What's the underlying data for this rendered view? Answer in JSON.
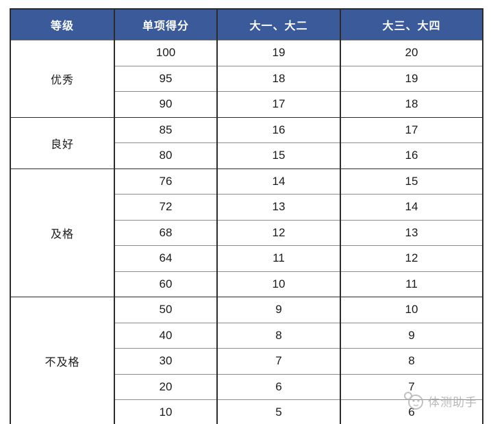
{
  "colors": {
    "header_bg": "#3A5A9A",
    "header_text": "#FFFFFF",
    "body_text": "#1A1A1A",
    "grid_dark": "#2B2B2B",
    "grid_light": "#8C8C8C",
    "watermark": "#A0A0A0"
  },
  "table": {
    "headers": [
      "等级",
      "单项得分",
      "大一、大二",
      "大三、大四"
    ],
    "groups": [
      {
        "grade": "优秀",
        "rows": [
          [
            100,
            19,
            20
          ],
          [
            95,
            18,
            19
          ],
          [
            90,
            17,
            18
          ]
        ]
      },
      {
        "grade": "良好",
        "rows": [
          [
            85,
            16,
            17
          ],
          [
            80,
            15,
            16
          ]
        ]
      },
      {
        "grade": "及格",
        "rows": [
          [
            76,
            14,
            15
          ],
          [
            72,
            13,
            14
          ],
          [
            68,
            12,
            13
          ],
          [
            64,
            11,
            12
          ],
          [
            60,
            10,
            11
          ]
        ]
      },
      {
        "grade": "不及格",
        "rows": [
          [
            50,
            9,
            10
          ],
          [
            40,
            8,
            9
          ],
          [
            30,
            7,
            8
          ],
          [
            20,
            6,
            7
          ],
          [
            10,
            5,
            6
          ]
        ]
      }
    ]
  },
  "watermark": {
    "text": "体测助手"
  },
  "chart_data": {
    "type": "table",
    "title": "",
    "columns": [
      "等级",
      "单项得分",
      "大一、大二",
      "大三、大四"
    ],
    "rows": [
      [
        "优秀",
        100,
        19,
        20
      ],
      [
        "优秀",
        95,
        18,
        19
      ],
      [
        "优秀",
        90,
        17,
        18
      ],
      [
        "良好",
        85,
        16,
        17
      ],
      [
        "良好",
        80,
        15,
        16
      ],
      [
        "及格",
        76,
        14,
        15
      ],
      [
        "及格",
        72,
        13,
        14
      ],
      [
        "及格",
        68,
        12,
        13
      ],
      [
        "及格",
        64,
        11,
        12
      ],
      [
        "及格",
        60,
        10,
        11
      ],
      [
        "不及格",
        50,
        9,
        10
      ],
      [
        "不及格",
        40,
        8,
        9
      ],
      [
        "不及格",
        30,
        7,
        8
      ],
      [
        "不及格",
        20,
        6,
        7
      ],
      [
        "不及格",
        10,
        5,
        6
      ]
    ],
    "layout": {
      "merged_first_column": true,
      "header_style": "blue-band"
    }
  }
}
